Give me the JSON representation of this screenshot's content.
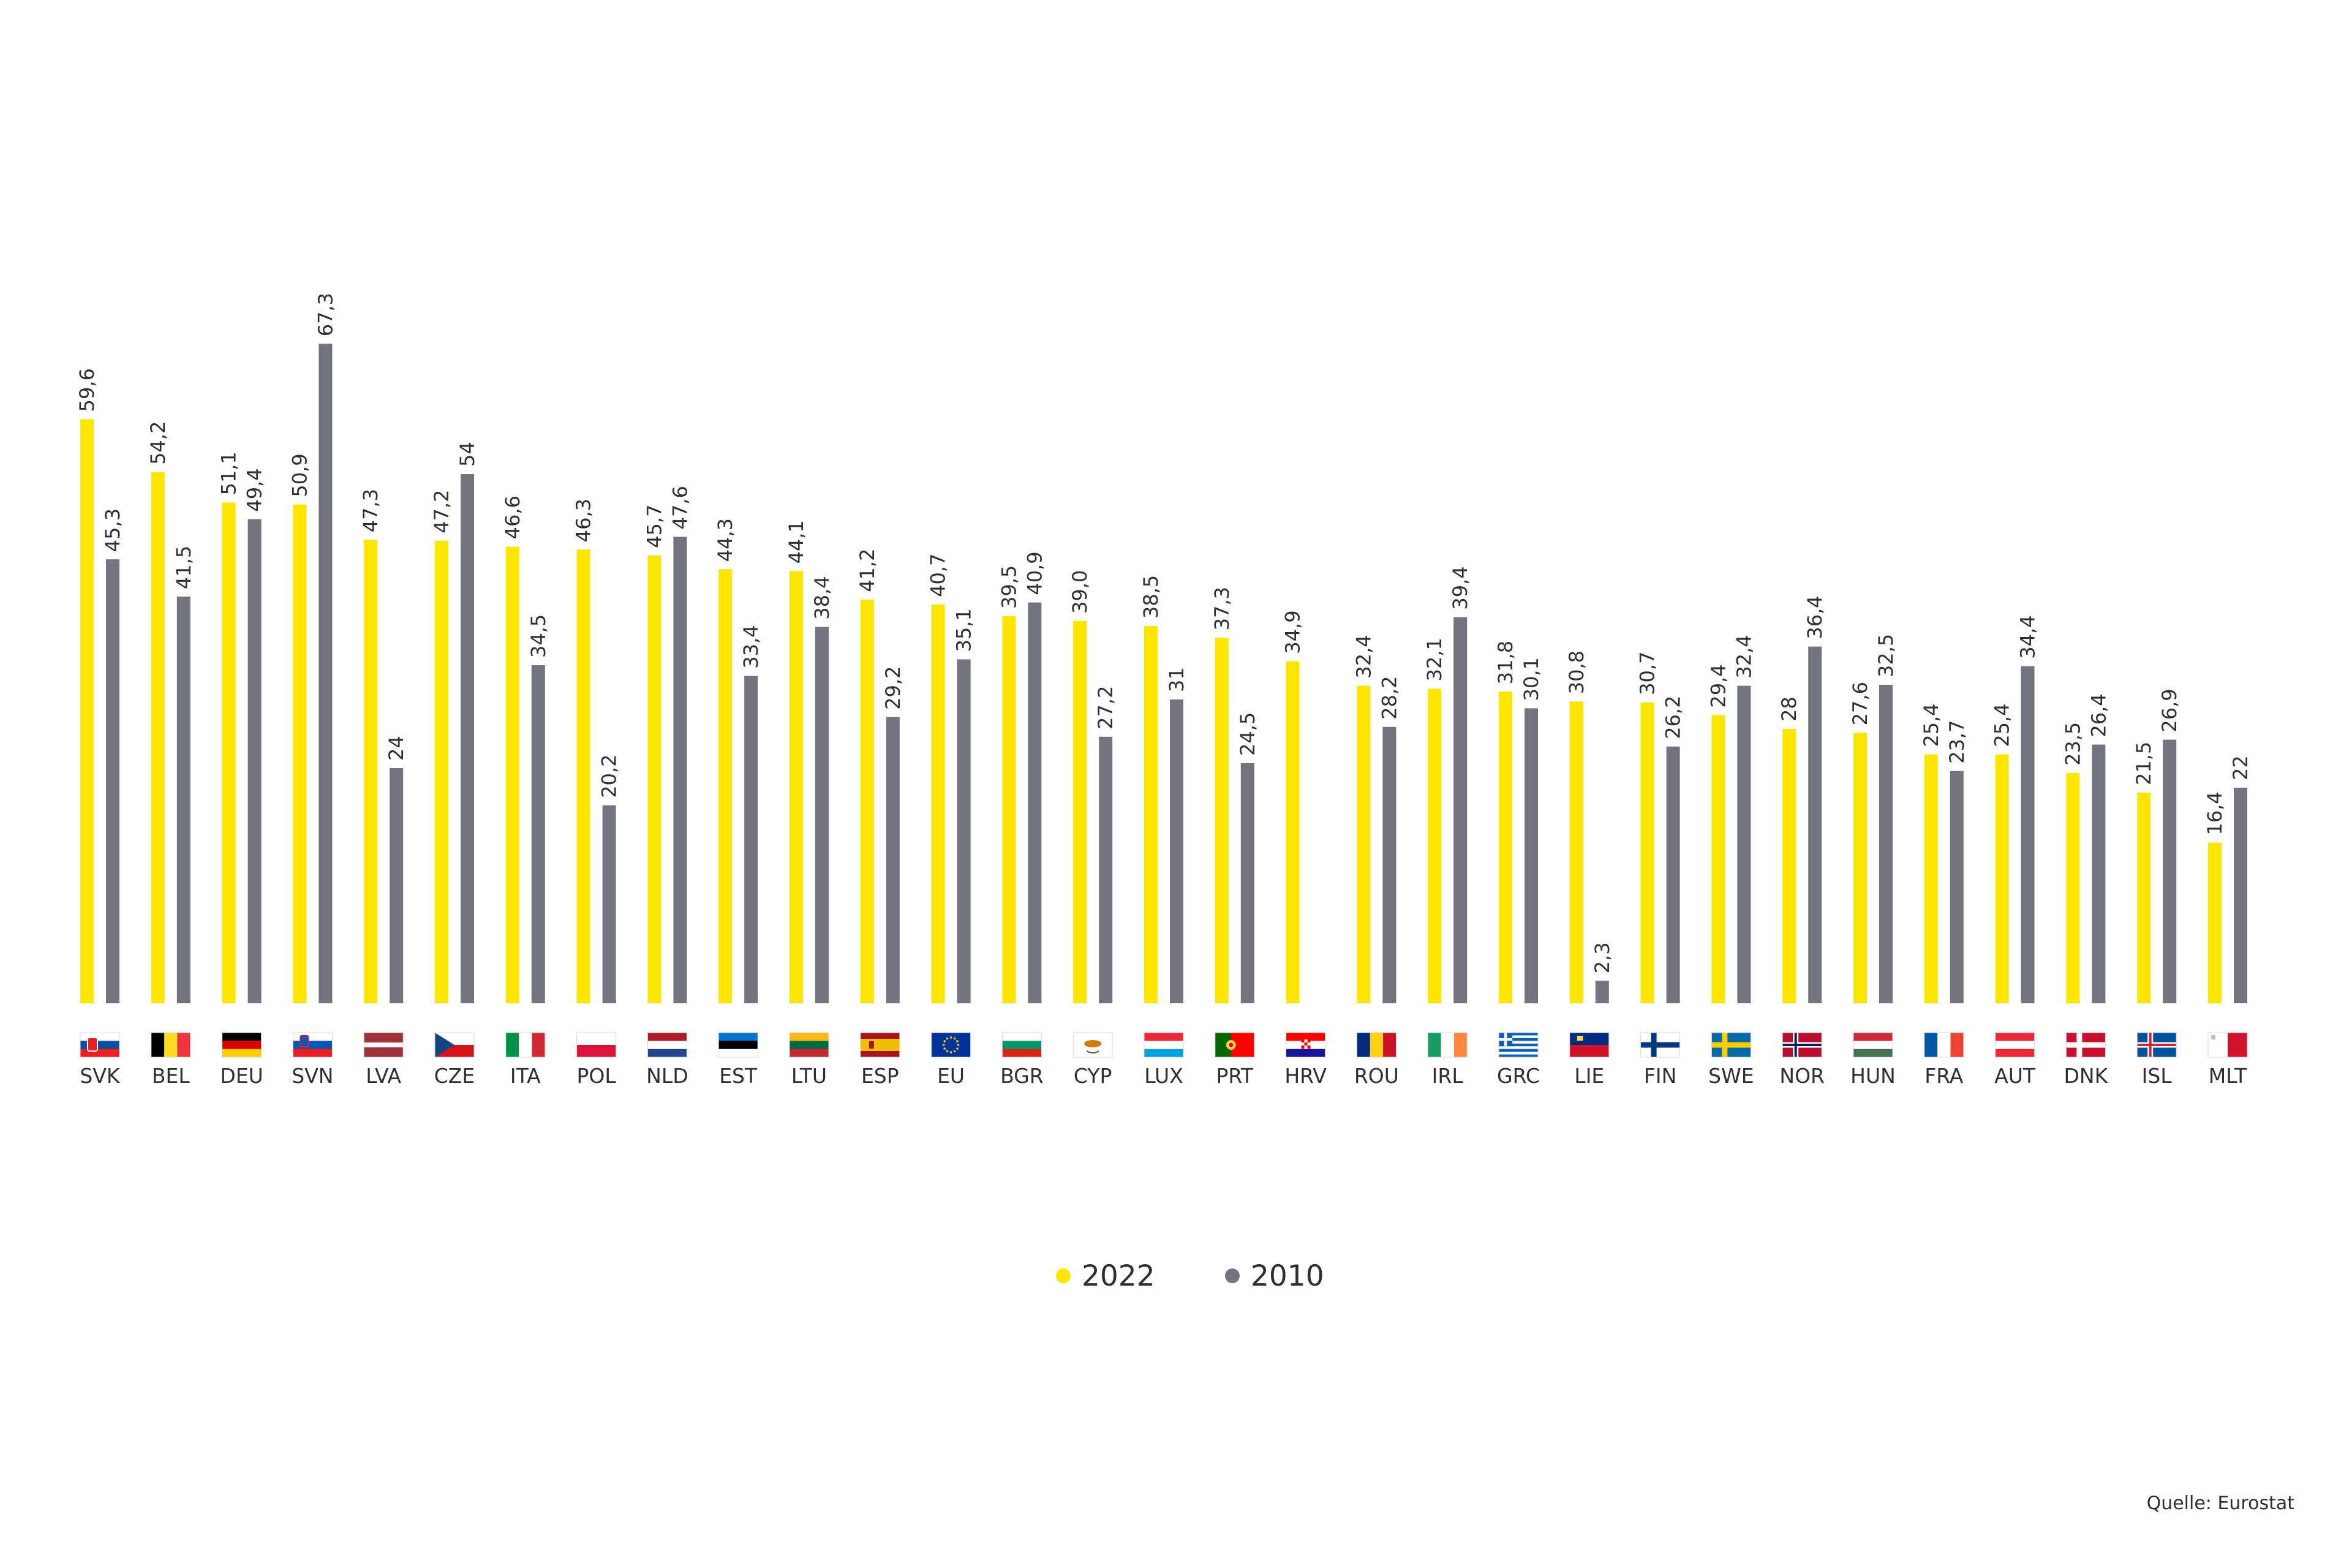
{
  "chart_data": {
    "type": "bar",
    "categories": [
      "SVK",
      "BEL",
      "DEU",
      "SVN",
      "LVA",
      "CZE",
      "ITA",
      "POL",
      "NLD",
      "EST",
      "LTU",
      "ESP",
      "EU",
      "BGR",
      "CYP",
      "LUX",
      "PRT",
      "HRV",
      "ROU",
      "IRL",
      "GRC",
      "LIE",
      "FIN",
      "SWE",
      "NOR",
      "HUN",
      "FRA",
      "AUT",
      "DNK",
      "ISL",
      "MLT"
    ],
    "series": [
      {
        "name": "2022",
        "color": "#ffe600",
        "values": [
          59.6,
          54.2,
          51.1,
          50.9,
          47.3,
          47.2,
          46.6,
          46.3,
          45.7,
          44.3,
          44.1,
          41.2,
          40.7,
          39.5,
          39.0,
          38.5,
          37.3,
          34.9,
          32.4,
          32.1,
          31.8,
          30.8,
          30.7,
          29.4,
          28,
          27.6,
          25.4,
          25.4,
          23.5,
          21.5,
          16.4
        ],
        "labels": [
          "59,6",
          "54,2",
          "51,1",
          "50,9",
          "47,3",
          "47,2",
          "46,6",
          "46,3",
          "45,7",
          "44,3",
          "44,1",
          "41,2",
          "40,7",
          "39,5",
          "39,0",
          "38,5",
          "37,3",
          "34,9",
          "32,4",
          "32,1",
          "31,8",
          "30,8",
          "30,7",
          "29,4",
          "28",
          "27,6",
          "25,4",
          "25,4",
          "23,5",
          "21,5",
          "16,4"
        ]
      },
      {
        "name": "2010",
        "color": "#747480",
        "values": [
          45.3,
          41.5,
          49.4,
          67.3,
          24,
          54,
          34.5,
          20.2,
          47.6,
          33.4,
          38.4,
          29.2,
          35.1,
          40.9,
          27.2,
          31,
          24.5,
          null,
          28.2,
          39.4,
          30.1,
          2.3,
          26.2,
          32.4,
          36.4,
          32.5,
          23.7,
          34.4,
          26.4,
          26.9,
          22
        ],
        "labels": [
          "45,3",
          "41,5",
          "49,4",
          "67,3",
          "24",
          "54",
          "34,5",
          "20,2",
          "47,6",
          "33,4",
          "38,4",
          "29,2",
          "35,1",
          "40,9",
          "27,2",
          "31",
          "24,5",
          "",
          "28,2",
          "39,4",
          "30,1",
          "2,3",
          "26,2",
          "32,4",
          "36,4",
          "32,5",
          "23,7",
          "34,4",
          "26,4",
          "26,9",
          "22"
        ]
      }
    ],
    "flags": [
      "flag-svk",
      "flag-bel",
      "flag-deu",
      "flag-svn",
      "flag-lva",
      "flag-cze",
      "flag-ita",
      "flag-pol",
      "flag-nld",
      "flag-est",
      "flag-ltu",
      "flag-esp",
      "flag-eu",
      "flag-bgr",
      "flag-cyp",
      "flag-lux",
      "flag-prt",
      "flag-hrv",
      "flag-rou",
      "flag-irl",
      "flag-grc",
      "flag-lie",
      "flag-fin",
      "flag-swe",
      "flag-nor",
      "flag-hun",
      "flag-fra",
      "flag-aut",
      "flag-dnk",
      "flag-isl",
      "flag-mlt"
    ],
    "legend_position": "bottom-center",
    "grid": false,
    "source": "Quelle: Eurostat"
  }
}
